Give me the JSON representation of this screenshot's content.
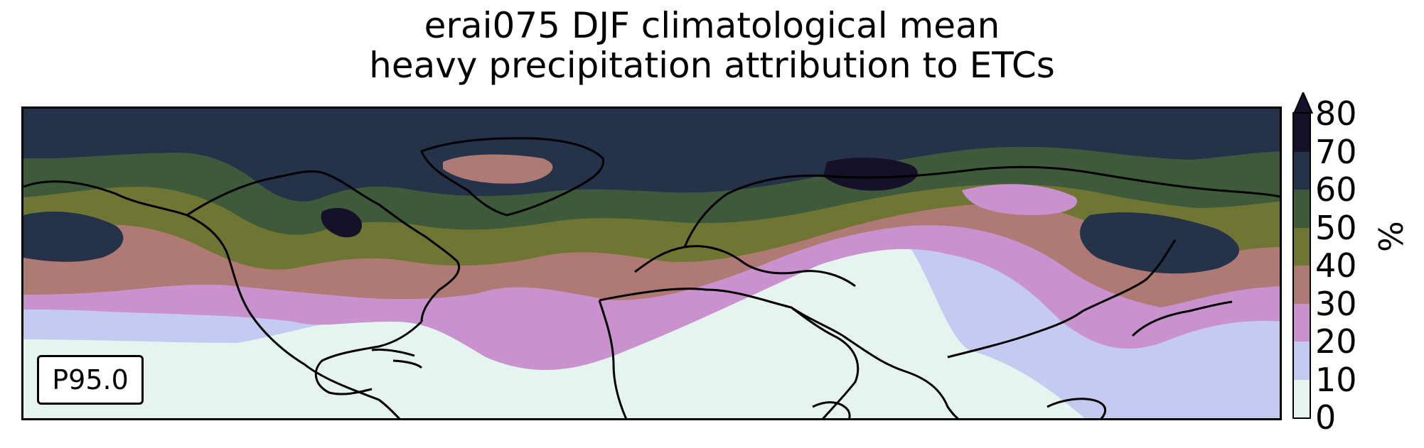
{
  "title_line1": "erai075 DJF climatological mean",
  "title_line2": "heavy precipitation attribution to ETCs",
  "badge": "P95.0",
  "colorbar": {
    "unit": "%",
    "ticks": [
      "0",
      "10",
      "20",
      "30",
      "40",
      "50",
      "60",
      "70",
      "80"
    ],
    "colors": [
      "#e6f4ef",
      "#c5cbf0",
      "#c992cf",
      "#b07a74",
      "#6f7634",
      "#3e5a3a",
      "#24324a",
      "#141128"
    ],
    "extend": "max"
  },
  "map": {
    "projection": "cylindrical",
    "coastline_color": "#000000",
    "coverage": "Northern Hemisphere, ~10°S to 80°N"
  }
}
